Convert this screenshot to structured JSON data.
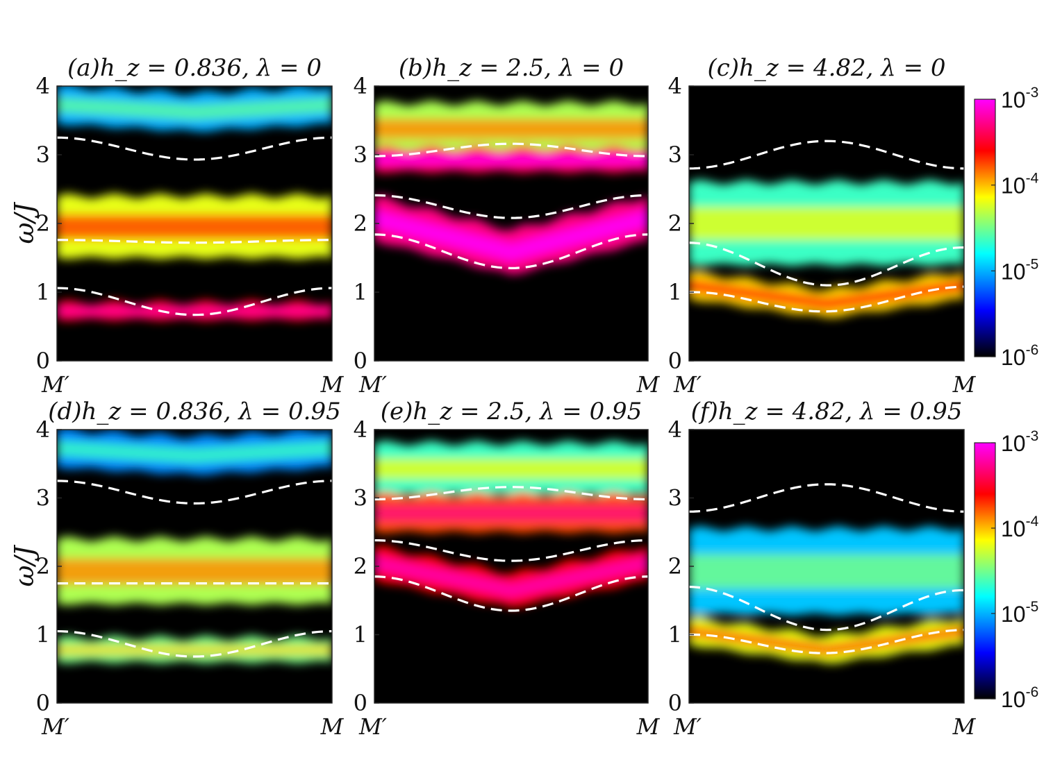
{
  "chart_data": [
    {
      "id": "a",
      "type": "heatmap",
      "title": "(a)h_z = 0.836, λ = 0",
      "ylabel": "ω/J",
      "xticks": [
        "M′",
        "M"
      ],
      "yticks": [
        "0",
        "1",
        "2",
        "3",
        "4"
      ],
      "ylim": [
        0,
        4
      ],
      "dashed": [
        [
          3.25,
          2.93,
          3.25
        ],
        [
          1.76,
          1.72,
          1.76
        ],
        [
          1.06,
          0.67,
          1.06
        ]
      ],
      "bands": [
        {
          "lo": 3.45,
          "hi": 4.0,
          "level": 0.33,
          "dip": 0.12
        },
        {
          "lo": 1.5,
          "hi": 2.4,
          "level": 0.6,
          "dip": 0
        },
        {
          "lo": 0.6,
          "hi": 0.85,
          "level": 0.8,
          "dip": 0
        }
      ]
    },
    {
      "id": "b",
      "type": "heatmap",
      "title": "(b)h_z = 2.5, λ = 0",
      "ylabel": "",
      "xticks": [
        "M′",
        "M"
      ],
      "yticks": [
        "0",
        "1",
        "2",
        "3",
        "4"
      ],
      "ylim": [
        0,
        4
      ],
      "dashed": [
        [
          2.98,
          3.16,
          2.98
        ],
        [
          2.41,
          2.08,
          2.41
        ],
        [
          1.84,
          1.35,
          1.84
        ]
      ],
      "bands": [
        {
          "lo": 3.0,
          "hi": 3.75,
          "level": 0.55,
          "dip": 0
        },
        {
          "lo": 2.75,
          "hi": 3.1,
          "level": 0.85,
          "dip": 0
        },
        {
          "lo": 1.75,
          "hi": 2.4,
          "level": 0.9,
          "dip": 0.55
        }
      ]
    },
    {
      "id": "c",
      "type": "heatmap",
      "title": "(c)h_z = 4.82, λ = 0",
      "ylabel": "",
      "xticks": [
        "M′",
        "M"
      ],
      "yticks": [
        "0",
        "1",
        "2",
        "3",
        "4"
      ],
      "ylim": [
        0,
        4
      ],
      "dashed": [
        [
          2.8,
          3.2,
          2.8
        ],
        [
          1.72,
          1.1,
          1.65
        ],
        [
          1.0,
          0.72,
          1.08
        ]
      ],
      "bands": [
        {
          "lo": 1.4,
          "hi": 2.6,
          "level": 0.45,
          "dip": 0
        },
        {
          "lo": 0.9,
          "hi": 1.3,
          "level": 0.65,
          "dip": 0.3
        }
      ]
    },
    {
      "id": "d",
      "type": "heatmap",
      "title": "(d)h_z = 0.836, λ = 0.95",
      "ylabel": "ω/J",
      "xticks": [
        "M′",
        "M"
      ],
      "yticks": [
        "0",
        "1",
        "2",
        "3",
        "4"
      ],
      "ylim": [
        0,
        4
      ],
      "dashed": [
        [
          3.25,
          2.92,
          3.25
        ],
        [
          1.75,
          1.75,
          1.75
        ],
        [
          1.05,
          0.68,
          1.05
        ]
      ],
      "bands": [
        {
          "lo": 3.45,
          "hi": 4.0,
          "level": 0.3,
          "dip": 0.12
        },
        {
          "lo": 1.45,
          "hi": 2.4,
          "level": 0.55,
          "dip": 0
        },
        {
          "lo": 0.6,
          "hi": 0.95,
          "level": 0.5,
          "dip": 0
        }
      ]
    },
    {
      "id": "e",
      "type": "heatmap",
      "title": "(e)h_z = 2.5, λ = 0.95",
      "ylabel": "",
      "xticks": [
        "M′",
        "M"
      ],
      "yticks": [
        "0",
        "1",
        "2",
        "3",
        "4"
      ],
      "ylim": [
        0,
        4
      ],
      "dashed": [
        [
          2.98,
          3.16,
          2.98
        ],
        [
          2.38,
          2.08,
          2.38
        ],
        [
          1.85,
          1.35,
          1.85
        ]
      ],
      "bands": [
        {
          "lo": 3.05,
          "hi": 3.8,
          "level": 0.45,
          "dip": 0
        },
        {
          "lo": 2.5,
          "hi": 3.05,
          "level": 0.75,
          "dip": 0
        },
        {
          "lo": 1.8,
          "hi": 2.3,
          "level": 0.8,
          "dip": 0.45
        }
      ]
    },
    {
      "id": "f",
      "type": "heatmap",
      "title": "(f)h_z = 4.82, λ = 0.95",
      "ylabel": "",
      "xticks": [
        "M′",
        "M"
      ],
      "yticks": [
        "0",
        "1",
        "2",
        "3",
        "4"
      ],
      "ylim": [
        0,
        4
      ],
      "dashed": [
        [
          2.8,
          3.2,
          2.8
        ],
        [
          1.7,
          1.07,
          1.65
        ],
        [
          1.0,
          0.73,
          1.07
        ]
      ],
      "bands": [
        {
          "lo": 1.3,
          "hi": 2.55,
          "level": 0.35,
          "dip": 0
        },
        {
          "lo": 0.85,
          "hi": 1.25,
          "level": 0.6,
          "dip": 0.3
        }
      ]
    }
  ],
  "colorbar": {
    "scale": "log",
    "range": [
      "10^-6",
      "10^-3"
    ],
    "ticks": [
      {
        "base": "10",
        "exp": "-3"
      },
      {
        "base": "10",
        "exp": "-4"
      },
      {
        "base": "10",
        "exp": "-5"
      },
      {
        "base": "10",
        "exp": "-6"
      }
    ],
    "colors": [
      "#000000",
      "#0000ff",
      "#00ffff",
      "#ffff00",
      "#ff0000",
      "#ff00ff"
    ]
  },
  "style": {
    "background": "#000000",
    "dash_color": "#ffffff"
  }
}
